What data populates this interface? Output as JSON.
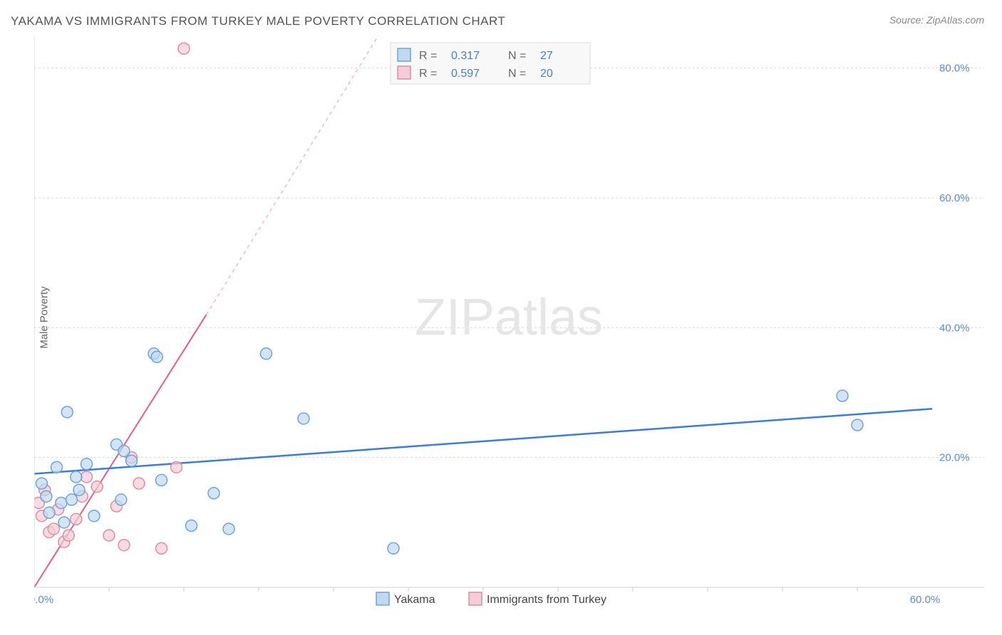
{
  "title": "YAKAMA VS IMMIGRANTS FROM TURKEY MALE POVERTY CORRELATION CHART",
  "source": "Source: ZipAtlas.com",
  "y_axis_label": "Male Poverty",
  "watermark": {
    "zip": "ZIP",
    "atlas": "atlas"
  },
  "chart": {
    "type": "scatter",
    "xlim": [
      0,
      60
    ],
    "ylim": [
      0,
      85
    ],
    "x_ticks": [
      0,
      60
    ],
    "x_minor_ticks": [
      5,
      10,
      15,
      20,
      25,
      30,
      35,
      40,
      45,
      50,
      55
    ],
    "y_ticks": [
      20,
      40,
      60,
      80
    ],
    "x_tick_labels": [
      "0.0%",
      "60.0%"
    ],
    "y_tick_labels": [
      "20.0%",
      "40.0%",
      "60.0%",
      "80.0%"
    ],
    "background_color": "#ffffff",
    "grid_color": "#d8d8d8",
    "series": [
      {
        "name": "Yakama",
        "marker_color_fill": "#c0d8f0",
        "marker_color_stroke": "#6fa3db",
        "marker_radius": 8,
        "marker_opacity": 0.7,
        "points": [
          [
            1.5,
            18.5
          ],
          [
            2.2,
            27.0
          ],
          [
            0.8,
            14.0
          ],
          [
            1.8,
            13.0
          ],
          [
            2.5,
            13.5
          ],
          [
            3.5,
            19.0
          ],
          [
            4.0,
            11.0
          ],
          [
            5.5,
            22.0
          ],
          [
            6.0,
            21.0
          ],
          [
            5.8,
            13.5
          ],
          [
            8.0,
            36.0
          ],
          [
            8.2,
            35.5
          ],
          [
            8.5,
            16.5
          ],
          [
            10.5,
            9.5
          ],
          [
            12.0,
            14.5
          ],
          [
            13.0,
            9.0
          ],
          [
            15.5,
            36.0
          ],
          [
            18.0,
            26.0
          ],
          [
            24.0,
            6.0
          ],
          [
            54.0,
            29.5
          ],
          [
            55.0,
            25.0
          ],
          [
            0.5,
            16.0
          ],
          [
            2.0,
            10.0
          ],
          [
            3.0,
            15.0
          ],
          [
            6.5,
            19.5
          ],
          [
            1.0,
            11.5
          ],
          [
            2.8,
            17.0
          ]
        ],
        "trend": {
          "x1": 0,
          "y1": 17.5,
          "x2": 60,
          "y2": 27.5,
          "color": "#3b7dd8",
          "width": 2.5
        },
        "r_value": "0.317",
        "n_value": "27"
      },
      {
        "name": "Immigrants from Turkey",
        "marker_color_fill": "#f5cdd6",
        "marker_color_stroke": "#e08ca1",
        "marker_radius": 8,
        "marker_opacity": 0.7,
        "points": [
          [
            0.3,
            13.0
          ],
          [
            0.5,
            11.0
          ],
          [
            0.7,
            15.0
          ],
          [
            1.0,
            8.5
          ],
          [
            1.3,
            9.0
          ],
          [
            1.6,
            12.0
          ],
          [
            2.0,
            7.0
          ],
          [
            2.3,
            8.0
          ],
          [
            2.8,
            10.5
          ],
          [
            3.2,
            14.0
          ],
          [
            3.5,
            17.0
          ],
          [
            4.2,
            15.5
          ],
          [
            5.0,
            8.0
          ],
          [
            5.5,
            12.5
          ],
          [
            6.5,
            20.0
          ],
          [
            6.0,
            6.5
          ],
          [
            7.0,
            16.0
          ],
          [
            8.5,
            6.0
          ],
          [
            9.5,
            18.5
          ],
          [
            10.0,
            83.0
          ]
        ],
        "trend_solid": {
          "x1": 0,
          "y1": 0,
          "x2": 11.5,
          "y2": 42.0,
          "color": "#e85d87",
          "width": 2
        },
        "trend_dash": {
          "x1": 11.5,
          "y1": 42.0,
          "x2": 23.0,
          "y2": 85.0,
          "color": "#f2b8c8",
          "width": 1.5
        },
        "r_value": "0.597",
        "n_value": "20"
      }
    ],
    "legend_top": {
      "r_label": "R",
      "n_label": "N",
      "eq": "="
    },
    "legend_bottom": [
      {
        "label": "Yakama",
        "swatch": "blue"
      },
      {
        "label": "Immigrants from Turkey",
        "swatch": "pink"
      }
    ]
  }
}
